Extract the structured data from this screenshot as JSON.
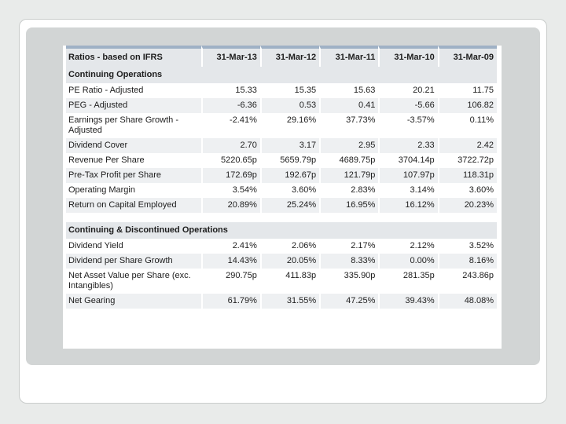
{
  "table": {
    "headers": [
      "Ratios - based on IFRS",
      "31-Mar-13",
      "31-Mar-12",
      "31-Mar-11",
      "31-Mar-10",
      "31-Mar-09"
    ],
    "section1_title": "Continuing Operations",
    "section1_rows": [
      {
        "label": "PE Ratio - Adjusted",
        "values": [
          "15.33",
          "15.35",
          "15.63",
          "20.21",
          "11.75"
        ]
      },
      {
        "label": "PEG - Adjusted",
        "values": [
          "-6.36",
          "0.53",
          "0.41",
          "-5.66",
          "106.82"
        ]
      },
      {
        "label": "Earnings per Share Growth - Adjusted",
        "values": [
          "-2.41%",
          "29.16%",
          "37.73%",
          "-3.57%",
          "0.11%"
        ]
      },
      {
        "label": "Dividend Cover",
        "values": [
          "2.70",
          "3.17",
          "2.95",
          "2.33",
          "2.42"
        ]
      },
      {
        "label": "Revenue Per Share",
        "values": [
          "5220.65p",
          "5659.79p",
          "4689.75p",
          "3704.14p",
          "3722.72p"
        ]
      },
      {
        "label": "Pre-Tax Profit per Share",
        "values": [
          "172.69p",
          "192.67p",
          "121.79p",
          "107.97p",
          "118.31p"
        ]
      },
      {
        "label": "Operating Margin",
        "values": [
          "3.54%",
          "3.60%",
          "2.83%",
          "3.14%",
          "3.60%"
        ]
      },
      {
        "label": "Return on Capital Employed",
        "values": [
          "20.89%",
          "25.24%",
          "16.95%",
          "16.12%",
          "20.23%"
        ]
      }
    ],
    "section2_title": "Continuing & Discontinued Operations",
    "section2_rows": [
      {
        "label": "Dividend Yield",
        "values": [
          "2.41%",
          "2.06%",
          "2.17%",
          "2.12%",
          "3.52%"
        ]
      },
      {
        "label": "Dividend per Share Growth",
        "values": [
          "14.43%",
          "20.05%",
          "8.33%",
          "0.00%",
          "8.16%"
        ]
      },
      {
        "label": "Net Asset Value per Share (exc. Intangibles)",
        "values": [
          "290.75p",
          "411.83p",
          "335.90p",
          "281.35p",
          "243.86p"
        ]
      },
      {
        "label": "Net Gearing",
        "values": [
          "61.79%",
          "31.55%",
          "47.25%",
          "39.43%",
          "48.08%"
        ]
      }
    ]
  }
}
